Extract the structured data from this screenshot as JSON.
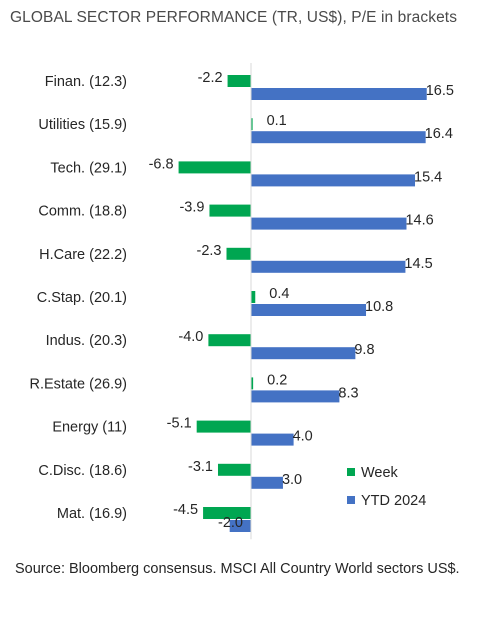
{
  "title": "GLOBAL SECTOR PERFORMANCE (TR, US$), P/E in brackets",
  "source": "Source: Bloomberg consensus. MSCI All Country World sectors US$.",
  "colors": {
    "week": "#00a651",
    "ytd": "#4472c4",
    "axis": "#d9d9d9"
  },
  "chart_data": {
    "type": "bar",
    "orientation": "horizontal",
    "title": "GLOBAL SECTOR PERFORMANCE (TR, US$), P/E in brackets",
    "categories": [
      "Finan. (12.3)",
      "Utilities (15.9)",
      "Tech. (29.1)",
      "Comm. (18.8)",
      "H.Care (22.2)",
      "C.Stap. (20.1)",
      "Indus. (20.3)",
      "R.Estate (26.9)",
      "Energy (11)",
      "C.Disc. (18.6)",
      "Mat. (16.9)"
    ],
    "series": [
      {
        "name": "Week",
        "values": [
          -2.2,
          0.1,
          -6.8,
          -3.9,
          -2.3,
          0.4,
          -4.0,
          0.2,
          -5.1,
          -3.1,
          -4.5
        ],
        "labels": [
          "-2.2",
          "0.1",
          "-6.8",
          "-3.9",
          "-2.3",
          "0.4",
          "-4.0",
          "0.2",
          "-5.1",
          "-3.1",
          "-4.5"
        ]
      },
      {
        "name": "YTD 2024",
        "values": [
          16.5,
          16.4,
          15.4,
          14.6,
          14.5,
          10.8,
          9.8,
          8.3,
          4.0,
          3.0,
          -2.0
        ],
        "labels": [
          "16.5",
          "16.4",
          "15.4",
          "14.6",
          "14.5",
          "10.8",
          "9.8",
          "8.3",
          "4.0",
          "3.0",
          "-2.0"
        ]
      }
    ],
    "legend_position": "bottom-right",
    "grid": false
  }
}
